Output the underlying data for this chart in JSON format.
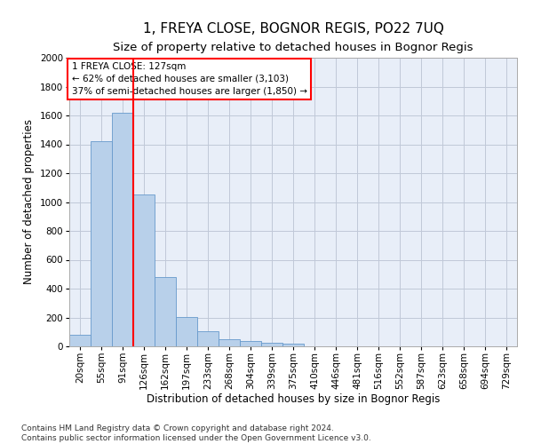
{
  "title": "1, FREYA CLOSE, BOGNOR REGIS, PO22 7UQ",
  "subtitle": "Size of property relative to detached houses in Bognor Regis",
  "xlabel": "Distribution of detached houses by size in Bognor Regis",
  "ylabel": "Number of detached properties",
  "categories": [
    "20sqm",
    "55sqm",
    "91sqm",
    "126sqm",
    "162sqm",
    "197sqm",
    "233sqm",
    "268sqm",
    "304sqm",
    "339sqm",
    "375sqm",
    "410sqm",
    "446sqm",
    "481sqm",
    "516sqm",
    "552sqm",
    "587sqm",
    "623sqm",
    "658sqm",
    "694sqm",
    "729sqm"
  ],
  "values": [
    80,
    1420,
    1620,
    1050,
    480,
    205,
    105,
    48,
    35,
    22,
    18,
    0,
    0,
    0,
    0,
    0,
    0,
    0,
    0,
    0,
    0
  ],
  "bar_color": "#b8d0ea",
  "bar_edge_color": "#6699cc",
  "red_line_x": 2.5,
  "ylim": [
    0,
    2000
  ],
  "yticks": [
    0,
    200,
    400,
    600,
    800,
    1000,
    1200,
    1400,
    1600,
    1800,
    2000
  ],
  "annotation_text": "1 FREYA CLOSE: 127sqm\n← 62% of detached houses are smaller (3,103)\n37% of semi-detached houses are larger (1,850) →",
  "footer": "Contains HM Land Registry data © Crown copyright and database right 2024.\nContains public sector information licensed under the Open Government Licence v3.0.",
  "background_color": "#ffffff",
  "ax_background": "#e8eef8",
  "grid_color": "#c0c8d8",
  "title_fontsize": 11,
  "subtitle_fontsize": 9.5,
  "label_fontsize": 8.5,
  "tick_fontsize": 7.5,
  "footer_fontsize": 6.5
}
